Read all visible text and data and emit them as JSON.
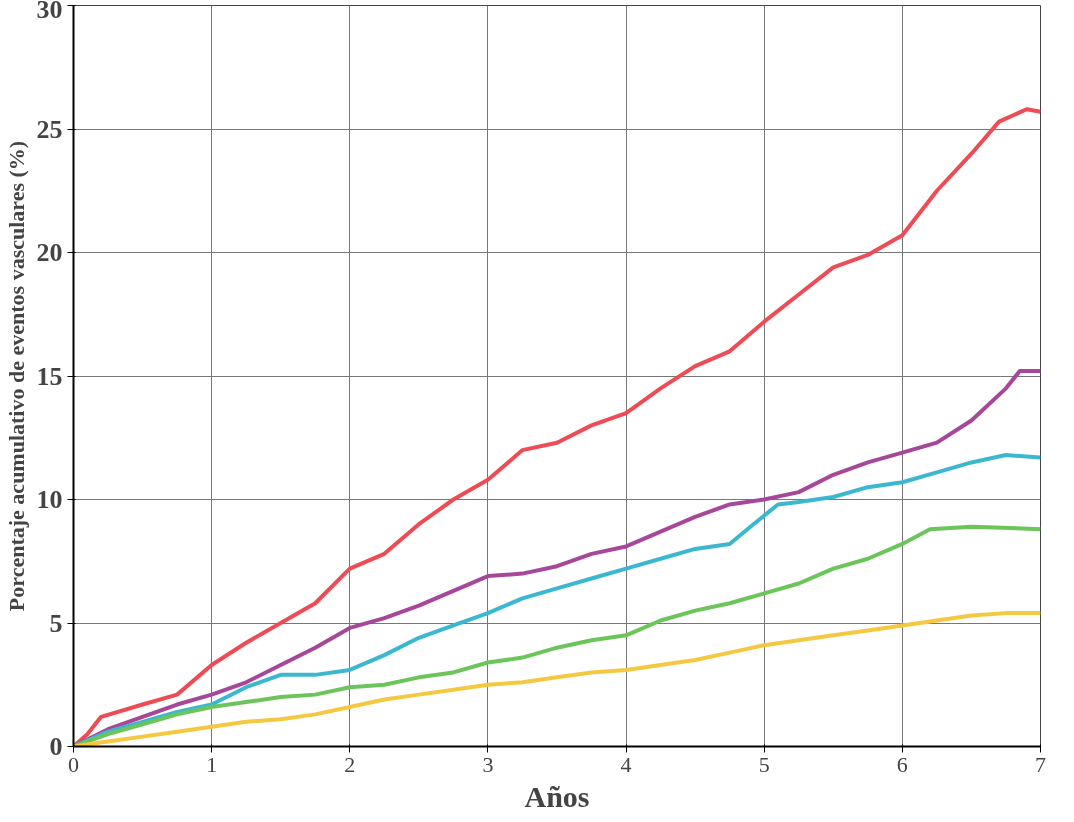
{
  "chart_data": {
    "type": "line",
    "xlabel": "Años",
    "ylabel": "Porcentaje acumulativo de eventos vasculares (%)",
    "xlim": [
      0,
      7
    ],
    "ylim": [
      0,
      30
    ],
    "xticks": [
      0,
      1,
      2,
      3,
      4,
      5,
      6,
      7
    ],
    "yticks": [
      0,
      5,
      10,
      15,
      20,
      25,
      30
    ],
    "grid": true,
    "marker": "none",
    "line_style": "solid",
    "series": [
      {
        "color": "#ee4b55",
        "x": [
          0,
          0.1,
          0.2,
          0.5,
          0.75,
          1,
          1.25,
          1.5,
          1.75,
          2,
          2.25,
          2.5,
          2.75,
          3,
          3.25,
          3.5,
          3.75,
          4,
          4.25,
          4.5,
          4.75,
          5,
          5.25,
          5.5,
          5.75,
          6,
          6.25,
          6.5,
          6.7,
          6.9,
          7
        ],
        "values": [
          0,
          0.5,
          1.2,
          1.7,
          2.1,
          3.3,
          4.2,
          5,
          5.8,
          7.2,
          7.8,
          9,
          10,
          10.8,
          12,
          12.3,
          13,
          13.5,
          14.5,
          15.4,
          16,
          17.2,
          18.3,
          19.4,
          19.9,
          20.7,
          22.5,
          24,
          25.3,
          25.8,
          25.7
        ]
      },
      {
        "color": "#a6479a",
        "x": [
          0,
          0.25,
          0.5,
          0.75,
          1,
          1.25,
          1.5,
          1.75,
          2,
          2.25,
          2.5,
          2.75,
          3,
          3.25,
          3.5,
          3.75,
          4,
          4.25,
          4.5,
          4.75,
          5,
          5.25,
          5.5,
          5.75,
          6,
          6.25,
          6.5,
          6.75,
          6.85,
          7
        ],
        "values": [
          0,
          0.7,
          1.2,
          1.7,
          2.1,
          2.6,
          3.3,
          4,
          4.8,
          5.2,
          5.7,
          6.3,
          6.9,
          7,
          7.3,
          7.8,
          8.1,
          8.7,
          9.3,
          9.8,
          10,
          10.3,
          11,
          11.5,
          11.9,
          12.3,
          13.2,
          14.5,
          15.2,
          15.2
        ]
      },
      {
        "color": "#3bb8cf",
        "x": [
          0,
          0.25,
          0.5,
          0.75,
          1,
          1.25,
          1.5,
          1.75,
          2,
          2.25,
          2.5,
          2.75,
          3,
          3.25,
          3.5,
          3.75,
          4,
          4.25,
          4.5,
          4.75,
          4.9,
          5.1,
          5.25,
          5.5,
          5.75,
          6,
          6.25,
          6.5,
          6.75,
          7
        ],
        "values": [
          0,
          0.6,
          1,
          1.4,
          1.7,
          2.4,
          2.9,
          2.9,
          3.1,
          3.7,
          4.4,
          4.9,
          5.4,
          6,
          6.4,
          6.8,
          7.2,
          7.6,
          8,
          8.2,
          8.9,
          9.8,
          9.9,
          10.1,
          10.5,
          10.7,
          11.1,
          11.5,
          11.8,
          11.7
        ]
      },
      {
        "color": "#6cc55a",
        "x": [
          0,
          0.25,
          0.5,
          0.75,
          1,
          1.25,
          1.5,
          1.75,
          2,
          2.25,
          2.5,
          2.75,
          3,
          3.25,
          3.5,
          3.75,
          4,
          4.25,
          4.5,
          4.75,
          5,
          5.25,
          5.5,
          5.75,
          6,
          6.2,
          6.5,
          7
        ],
        "values": [
          0,
          0.5,
          0.9,
          1.3,
          1.6,
          1.8,
          2,
          2.1,
          2.4,
          2.5,
          2.8,
          3,
          3.4,
          3.6,
          4,
          4.3,
          4.5,
          5.1,
          5.5,
          5.8,
          6.2,
          6.6,
          7.2,
          7.6,
          8.2,
          8.8,
          8.9,
          8.8
        ]
      },
      {
        "color": "#f5c842",
        "x": [
          0,
          0.25,
          0.5,
          0.75,
          1,
          1.25,
          1.5,
          1.75,
          2,
          2.25,
          2.5,
          2.75,
          3,
          3.25,
          3.5,
          3.75,
          4,
          4.25,
          4.5,
          4.75,
          5,
          5.25,
          5.5,
          5.75,
          6,
          6.25,
          6.5,
          6.75,
          7
        ],
        "values": [
          0,
          0.2,
          0.4,
          0.6,
          0.8,
          1,
          1.1,
          1.3,
          1.6,
          1.9,
          2.1,
          2.3,
          2.5,
          2.6,
          2.8,
          3,
          3.1,
          3.3,
          3.5,
          3.8,
          4.1,
          4.3,
          4.5,
          4.7,
          4.9,
          5.1,
          5.3,
          5.4,
          5.4
        ]
      }
    ]
  }
}
